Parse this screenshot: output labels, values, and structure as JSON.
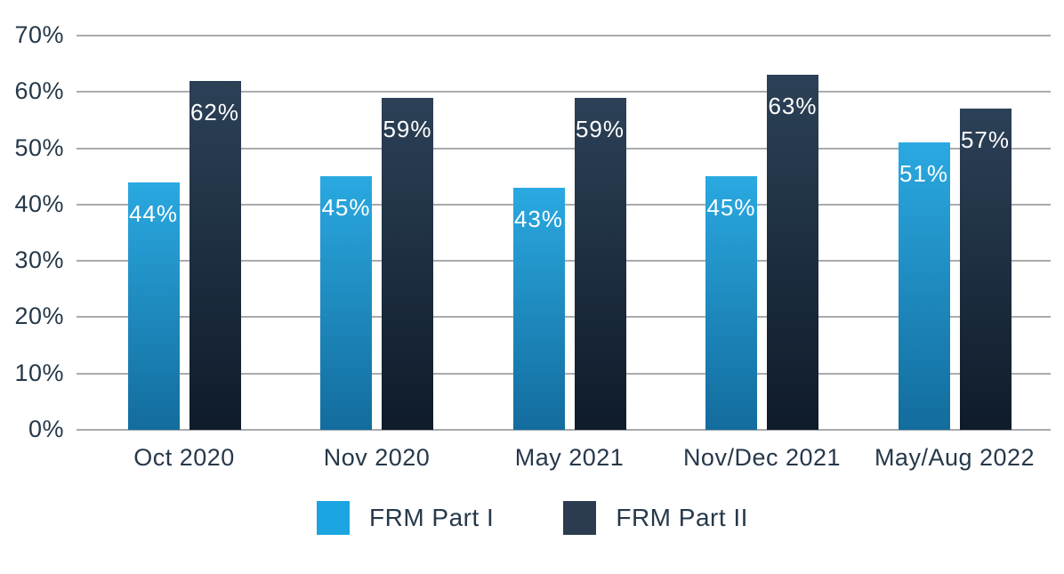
{
  "chart_data": {
    "type": "bar",
    "title": "",
    "xlabel": "",
    "ylabel": "",
    "categories": [
      "Oct 2020",
      "Nov 2020",
      "May 2021",
      "Nov/Dec 2021",
      "May/Aug 2022"
    ],
    "series": [
      {
        "name": "FRM Part I",
        "values": [
          44,
          45,
          43,
          45,
          51
        ],
        "color": "#1BA5E0",
        "gradient_top": "#2AA9E1",
        "gradient_bottom": "#136C9D"
      },
      {
        "name": "FRM Part II",
        "values": [
          62,
          59,
          59,
          63,
          57
        ],
        "color": "#2B3C50",
        "gradient_top": "#2C4157",
        "gradient_bottom": "#0F1B2A"
      }
    ],
    "value_suffix": "%",
    "ylim": [
      0,
      70
    ],
    "yticks": [
      0,
      10,
      20,
      30,
      40,
      50,
      60,
      70
    ],
    "ytick_labels": [
      "0%",
      "10%",
      "20%",
      "30%",
      "40%",
      "50%",
      "60%",
      "70%"
    ],
    "grid": true,
    "legend_position": "bottom-center"
  },
  "colors": {
    "background": "#FFFFFF",
    "axis_text": "#26384A",
    "gridline": "#A9ABAE",
    "value_label_text": "#FFFFFF"
  }
}
